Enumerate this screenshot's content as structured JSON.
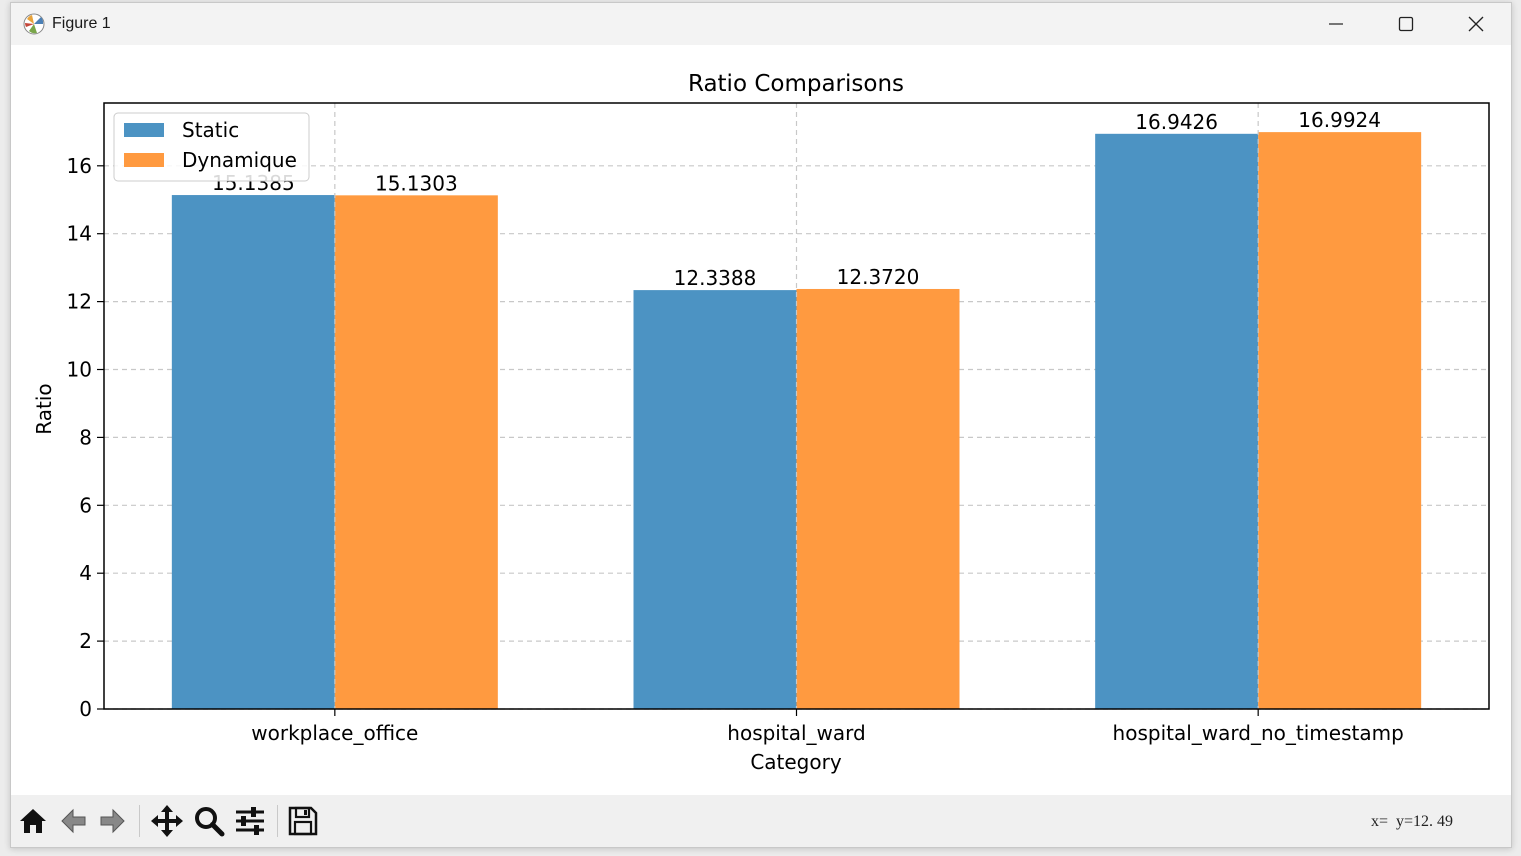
{
  "window": {
    "title": "Figure 1",
    "icons": {
      "app": "matplotlib-icon",
      "minimize": "minimize-icon",
      "maximize": "maximize-icon",
      "close": "close-icon"
    }
  },
  "toolbar": {
    "buttons": [
      {
        "name": "home-button",
        "icon": "home-icon"
      },
      {
        "name": "back-button",
        "icon": "arrow-left-icon"
      },
      {
        "name": "forward-button",
        "icon": "arrow-right-icon"
      },
      {
        "name": "pan-button",
        "icon": "move-icon"
      },
      {
        "name": "zoom-button",
        "icon": "search-icon"
      },
      {
        "name": "configure-subplots-button",
        "icon": "sliders-icon"
      },
      {
        "name": "save-button",
        "icon": "save-icon"
      }
    ],
    "coordinates": "x=  y=12. 49"
  },
  "chart_data": {
    "type": "bar",
    "title": "Ratio Comparisons",
    "xlabel": "Category",
    "ylabel": "Ratio",
    "categories": [
      "workplace_office",
      "hospital_ward",
      "hospital_ward_no_timestamp"
    ],
    "series": [
      {
        "name": "Static",
        "color": "#4c93c3",
        "values": [
          15.1385,
          12.3388,
          16.9426
        ],
        "labels": [
          "15.1385",
          "12.3388",
          "16.9426"
        ]
      },
      {
        "name": "Dynamique",
        "color": "#ff9a40",
        "values": [
          15.1303,
          12.372,
          16.9924
        ],
        "labels": [
          "15.1303",
          "12.3720",
          "16.9924"
        ]
      }
    ],
    "ylim": [
      0,
      17.85
    ],
    "yticks": [
      "0",
      "2",
      "4",
      "6",
      "8",
      "10",
      "12",
      "14",
      "16"
    ],
    "grid": true,
    "legend_position": "upper left"
  }
}
